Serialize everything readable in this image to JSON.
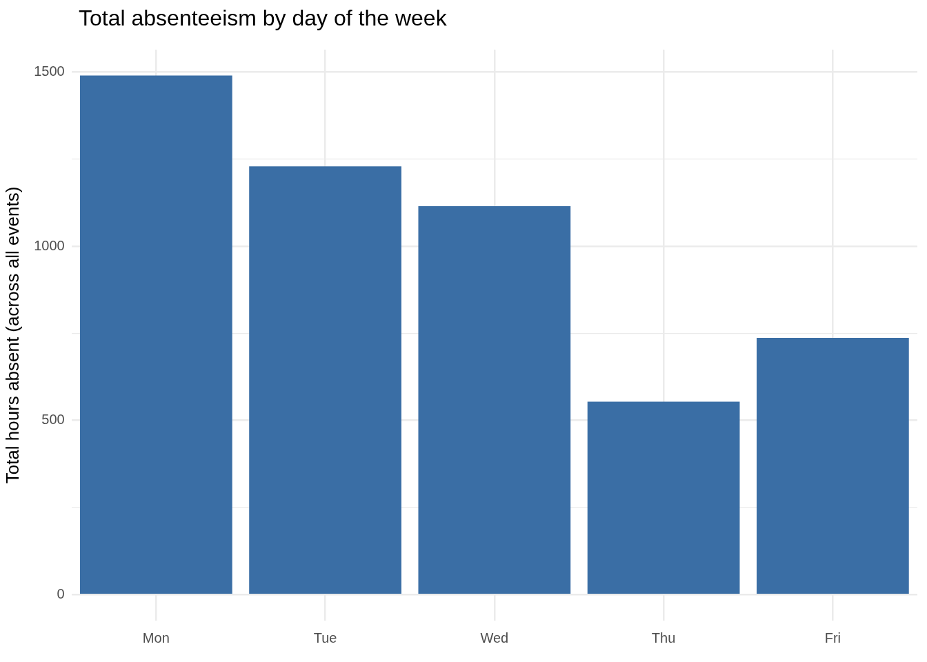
{
  "chart_data": {
    "type": "bar",
    "title": "Total absenteeism by day of the week",
    "ylabel": "Total hours absent (across all events)",
    "categories": [
      "Mon",
      "Tue",
      "Wed",
      "Thu",
      "Fri"
    ],
    "values": [
      1490,
      1229,
      1115,
      554,
      737
    ],
    "color": "#3a6ea5",
    "ylim": [
      -74.5,
      1564
    ],
    "yticks": [
      0,
      {
        "value": 250,
        "label": null
      },
      500,
      {
        "value": 750,
        "label": null
      },
      1000,
      {
        "value": 1250,
        "label": null
      },
      1500
    ],
    "grid": true,
    "legend": false
  }
}
